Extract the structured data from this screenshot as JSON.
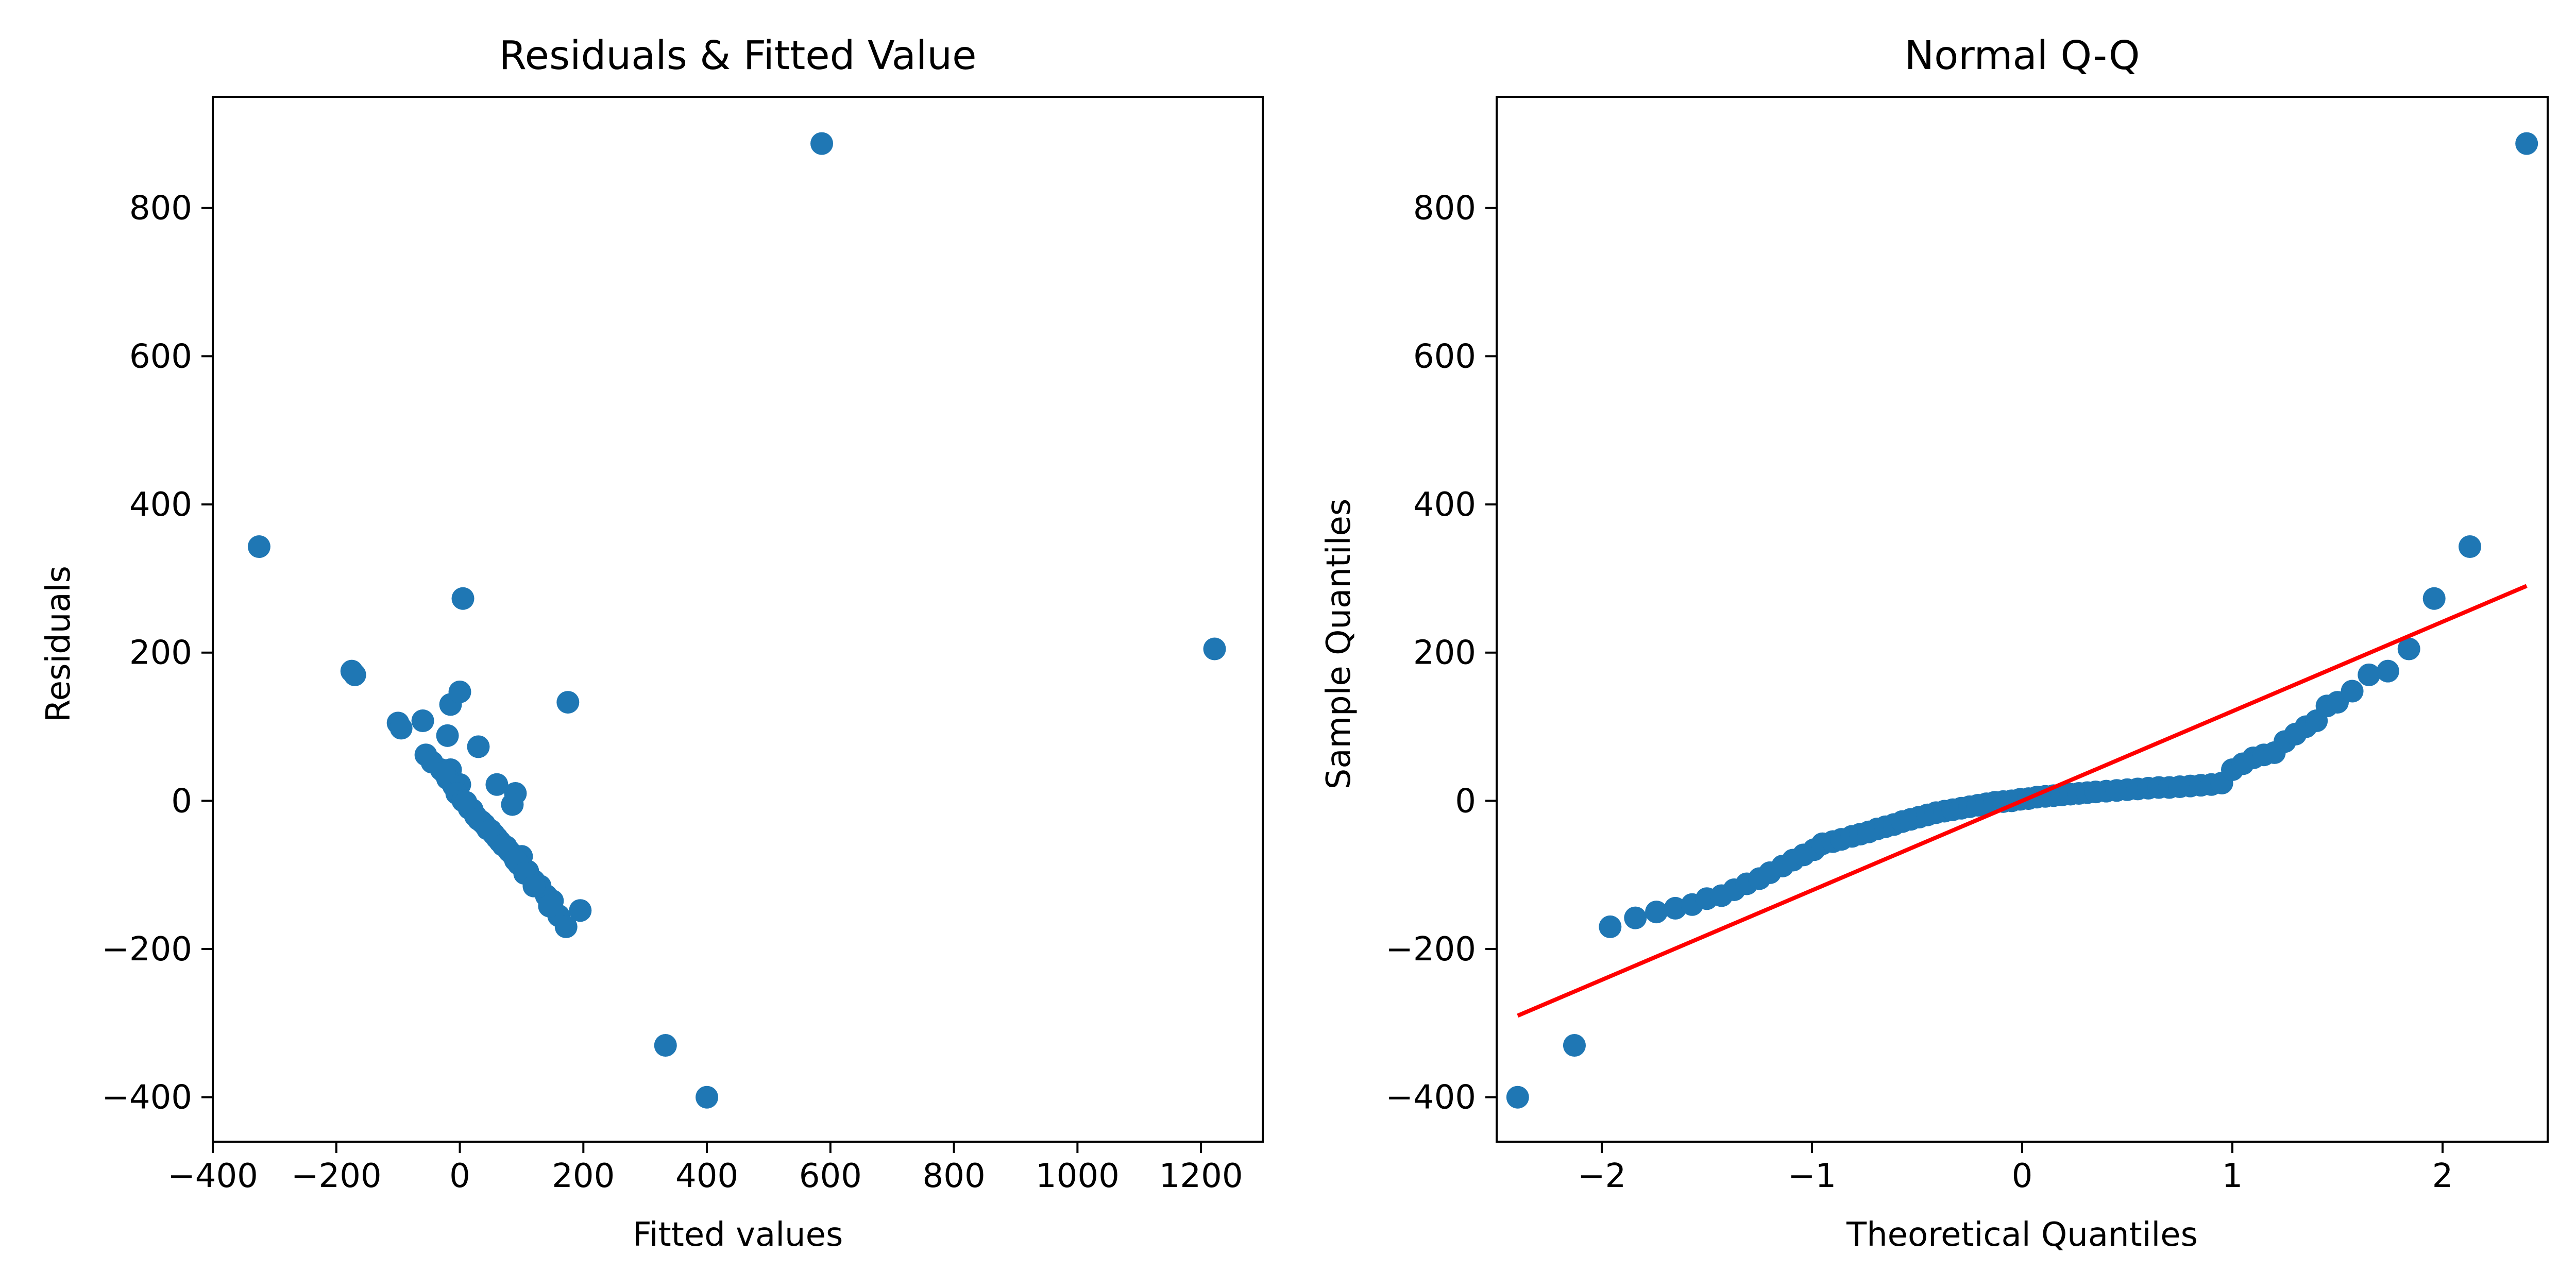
{
  "chart_data": [
    {
      "type": "scatter",
      "title": "Residuals & Fitted Value",
      "xlabel": "Fitted values",
      "ylabel": "Residuals",
      "xlim": [
        -400,
        1300
      ],
      "ylim": [
        -460,
        950
      ],
      "xticks": [
        -400,
        -200,
        0,
        200,
        400,
        600,
        800,
        1000,
        1200
      ],
      "xtick_labels": [
        "−400",
        "−200",
        "0",
        "200",
        "400",
        "600",
        "800",
        "1000",
        "1200"
      ],
      "yticks": [
        -400,
        -200,
        0,
        200,
        400,
        600,
        800
      ],
      "ytick_labels": [
        "−400",
        "−200",
        "0",
        "200",
        "400",
        "600",
        "800"
      ],
      "grid": false,
      "marker_color": "#1f77b4",
      "points": [
        [
          -325,
          343
        ],
        [
          586,
          887
        ],
        [
          1222,
          205
        ],
        [
          333,
          -330
        ],
        [
          400,
          -400
        ],
        [
          5,
          273
        ],
        [
          -175,
          175
        ],
        [
          -170,
          170
        ],
        [
          -100,
          105
        ],
        [
          -95,
          98
        ],
        [
          -60,
          108
        ],
        [
          -15,
          130
        ],
        [
          0,
          147
        ],
        [
          -20,
          88
        ],
        [
          30,
          73
        ],
        [
          175,
          133
        ],
        [
          195,
          -148
        ],
        [
          60,
          22
        ],
        [
          90,
          10
        ],
        [
          85,
          -5
        ],
        [
          -55,
          62
        ],
        [
          -45,
          52
        ],
        [
          -30,
          42
        ],
        [
          -15,
          42
        ],
        [
          0,
          22
        ],
        [
          20,
          -12
        ],
        [
          40,
          -32
        ],
        [
          60,
          -50
        ],
        [
          80,
          -68
        ],
        [
          100,
          -75
        ],
        [
          100,
          -88
        ],
        [
          120,
          -108
        ],
        [
          140,
          -128
        ],
        [
          150,
          -135
        ],
        [
          160,
          -155
        ],
        [
          172,
          -170
        ],
        [
          -20,
          30
        ],
        [
          -10,
          20
        ],
        [
          -5,
          10
        ],
        [
          5,
          0
        ],
        [
          15,
          -10
        ],
        [
          25,
          -20
        ],
        [
          35,
          -28
        ],
        [
          45,
          -38
        ],
        [
          55,
          -45
        ],
        [
          65,
          -55
        ],
        [
          75,
          -62
        ],
        [
          85,
          -72
        ],
        [
          95,
          -85
        ],
        [
          110,
          -95
        ],
        [
          130,
          -115
        ],
        [
          145,
          -142
        ],
        [
          -25,
          38
        ],
        [
          10,
          -2
        ],
        [
          30,
          -25
        ],
        [
          50,
          -40
        ],
        [
          70,
          -60
        ],
        [
          90,
          -80
        ],
        [
          105,
          -98
        ],
        [
          120,
          -115
        ]
      ]
    },
    {
      "type": "scatter",
      "title": "Normal Q-Q",
      "xlabel": "Theoretical Quantiles",
      "ylabel": "Sample Quantiles",
      "xlim": [
        -2.5,
        2.5
      ],
      "ylim": [
        -460,
        950
      ],
      "xticks": [
        -2,
        -1,
        0,
        1,
        2
      ],
      "xtick_labels": [
        "−2",
        "−1",
        "0",
        "1",
        "2"
      ],
      "yticks": [
        -400,
        -200,
        0,
        200,
        400,
        600,
        800
      ],
      "ytick_labels": [
        "−400",
        "−200",
        "0",
        "200",
        "400",
        "600",
        "800"
      ],
      "grid": false,
      "marker_color": "#1f77b4",
      "reference_line": {
        "x": [
          -2.4,
          2.4
        ],
        "y": [
          -290,
          290
        ],
        "color": "#ff0000"
      },
      "points": [
        [
          -2.4,
          -400
        ],
        [
          -2.13,
          -330
        ],
        [
          -1.96,
          -170
        ],
        [
          -1.84,
          -158
        ],
        [
          -1.74,
          -150
        ],
        [
          -1.65,
          -145
        ],
        [
          -1.57,
          -140
        ],
        [
          -1.5,
          -132
        ],
        [
          -1.43,
          -128
        ],
        [
          -1.37,
          -120
        ],
        [
          -1.31,
          -112
        ],
        [
          -1.25,
          -105
        ],
        [
          -1.2,
          -97
        ],
        [
          -1.14,
          -88
        ],
        [
          -1.09,
          -80
        ],
        [
          -1.04,
          -73
        ],
        [
          -0.99,
          -66
        ],
        [
          -0.95,
          -58
        ],
        [
          -0.9,
          -55
        ],
        [
          -0.86,
          -52
        ],
        [
          -0.81,
          -48
        ],
        [
          -0.77,
          -45
        ],
        [
          -0.73,
          -42
        ],
        [
          -0.69,
          -38
        ],
        [
          -0.65,
          -35
        ],
        [
          -0.61,
          -32
        ],
        [
          -0.57,
          -28
        ],
        [
          -0.53,
          -25
        ],
        [
          -0.49,
          -22
        ],
        [
          -0.45,
          -19
        ],
        [
          -0.41,
          -16
        ],
        [
          -0.37,
          -14
        ],
        [
          -0.33,
          -12
        ],
        [
          -0.29,
          -10
        ],
        [
          -0.25,
          -8
        ],
        [
          -0.21,
          -6
        ],
        [
          -0.17,
          -4
        ],
        [
          -0.13,
          -2
        ],
        [
          -0.09,
          -1
        ],
        [
          -0.05,
          0
        ],
        [
          -0.01,
          2
        ],
        [
          0.03,
          3
        ],
        [
          0.07,
          5
        ],
        [
          0.11,
          6
        ],
        [
          0.15,
          7
        ],
        [
          0.19,
          8
        ],
        [
          0.23,
          9
        ],
        [
          0.27,
          10
        ],
        [
          0.31,
          11
        ],
        [
          0.35,
          12
        ],
        [
          0.4,
          13
        ],
        [
          0.45,
          14
        ],
        [
          0.5,
          15
        ],
        [
          0.55,
          16
        ],
        [
          0.6,
          17
        ],
        [
          0.65,
          18
        ],
        [
          0.7,
          18
        ],
        [
          0.75,
          19
        ],
        [
          0.8,
          20
        ],
        [
          0.85,
          21
        ],
        [
          0.9,
          22
        ],
        [
          0.95,
          24
        ],
        [
          1.0,
          42
        ],
        [
          1.05,
          50
        ],
        [
          1.1,
          58
        ],
        [
          1.15,
          62
        ],
        [
          1.2,
          65
        ],
        [
          1.25,
          80
        ],
        [
          1.3,
          90
        ],
        [
          1.35,
          100
        ],
        [
          1.4,
          108
        ],
        [
          1.45,
          128
        ],
        [
          1.5,
          133
        ],
        [
          1.57,
          148
        ],
        [
          1.65,
          170
        ],
        [
          1.74,
          175
        ],
        [
          1.84,
          205
        ],
        [
          1.96,
          273
        ],
        [
          2.13,
          343
        ],
        [
          2.4,
          887
        ]
      ]
    }
  ]
}
